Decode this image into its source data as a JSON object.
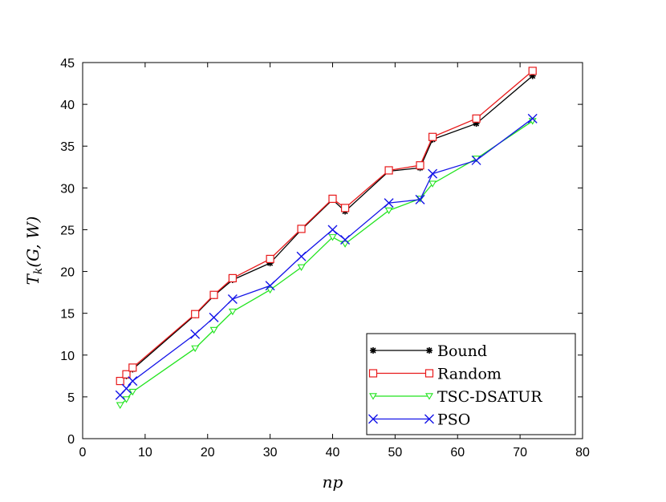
{
  "chart_data": {
    "type": "line",
    "xlabel": "np",
    "ylabel": "T_k(G, W)",
    "ylabel_parts": {
      "base": "T",
      "sub": "k",
      "args": "(G, W)"
    },
    "xlim": [
      0,
      80
    ],
    "ylim": [
      0,
      45
    ],
    "xticks": [
      0,
      10,
      20,
      30,
      40,
      50,
      60,
      70,
      80
    ],
    "yticks": [
      0,
      5,
      10,
      15,
      20,
      25,
      30,
      35,
      40,
      45
    ],
    "grid": false,
    "legend_position": "bottom-right",
    "series": [
      {
        "name": "Bound",
        "color": "#000000",
        "marker": "asterisk",
        "points": [
          [
            6,
            6.9
          ],
          [
            7,
            7.5
          ],
          [
            8,
            8.3
          ],
          [
            18,
            14.8
          ],
          [
            21,
            17.1
          ],
          [
            24,
            19.0
          ],
          [
            30,
            21.0
          ],
          [
            35,
            25.0
          ],
          [
            40,
            28.6
          ],
          [
            42,
            27.2
          ],
          [
            49,
            32.0
          ],
          [
            54,
            32.4
          ],
          [
            56,
            35.8
          ],
          [
            63,
            37.7
          ],
          [
            72,
            43.4
          ]
        ]
      },
      {
        "name": "Random",
        "color": "#e8191a",
        "marker": "square",
        "points": [
          [
            6,
            6.9
          ],
          [
            7,
            7.7
          ],
          [
            8,
            8.5
          ],
          [
            18,
            14.9
          ],
          [
            21,
            17.2
          ],
          [
            24,
            19.2
          ],
          [
            30,
            21.5
          ],
          [
            35,
            25.1
          ],
          [
            40,
            28.7
          ],
          [
            42,
            27.6
          ],
          [
            49,
            32.1
          ],
          [
            54,
            32.7
          ],
          [
            56,
            36.1
          ],
          [
            63,
            38.3
          ],
          [
            72,
            44.0
          ]
        ]
      },
      {
        "name": "TSC-DSATUR",
        "color": "#22e41f",
        "marker": "triangle-down",
        "points": [
          [
            6,
            4.0
          ],
          [
            7,
            4.7
          ],
          [
            8,
            5.6
          ],
          [
            18,
            10.8
          ],
          [
            21,
            13.0
          ],
          [
            24,
            15.2
          ],
          [
            30,
            17.8
          ],
          [
            35,
            20.5
          ],
          [
            40,
            24.1
          ],
          [
            42,
            23.3
          ],
          [
            49,
            27.3
          ],
          [
            54,
            28.7
          ],
          [
            56,
            30.5
          ],
          [
            63,
            33.5
          ],
          [
            72,
            38.0
          ]
        ]
      },
      {
        "name": "PSO",
        "color": "#1414e8",
        "marker": "x",
        "points": [
          [
            6,
            5.2
          ],
          [
            7,
            6.0
          ],
          [
            8,
            6.9
          ],
          [
            18,
            12.5
          ],
          [
            21,
            14.5
          ],
          [
            24,
            16.7
          ],
          [
            30,
            18.3
          ],
          [
            35,
            21.8
          ],
          [
            40,
            25.0
          ],
          [
            42,
            23.8
          ],
          [
            49,
            28.2
          ],
          [
            54,
            28.6
          ],
          [
            56,
            31.7
          ],
          [
            63,
            33.3
          ],
          [
            72,
            38.3
          ]
        ]
      }
    ]
  }
}
